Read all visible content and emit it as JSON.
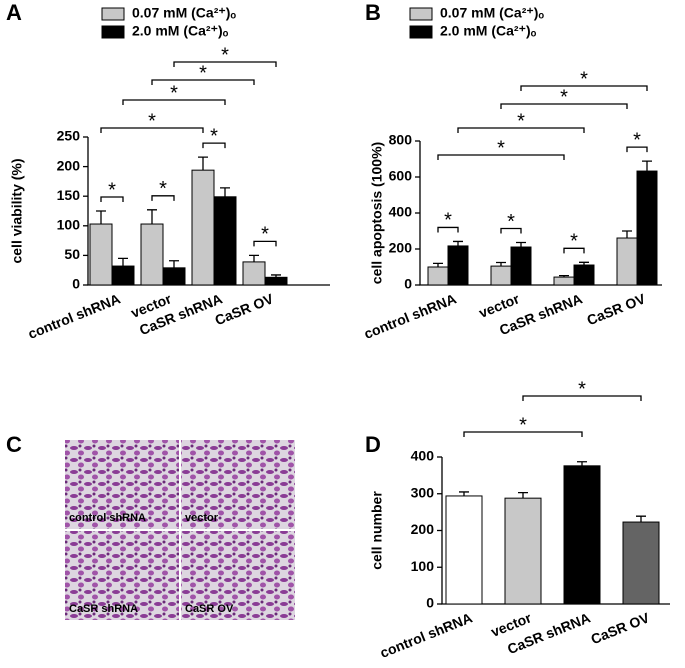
{
  "chart_data": [
    {
      "type": "bar",
      "panel": "A",
      "ylabel": "cell  viability (%)",
      "categories": [
        "control shRNA",
        "vector",
        "CaSR shRNA",
        "CaSR OV"
      ],
      "series": [
        {
          "name": "0.07 mM (Ca²⁺)ₒ",
          "color": "#c8c8c8",
          "values": [
            103,
            103,
            194,
            39
          ],
          "errors": [
            22,
            24,
            22,
            11
          ]
        },
        {
          "name": "2.0   mM (Ca²⁺)ₒ",
          "color": "#000000",
          "values": [
            32,
            29,
            149,
            13
          ],
          "errors": [
            13,
            12,
            15,
            4
          ]
        }
      ],
      "ylim": [
        0,
        250
      ],
      "yticks": [
        0,
        50,
        100,
        150,
        200,
        250
      ],
      "annotations": [
        "*",
        "*",
        "*",
        "*",
        "*",
        "*",
        "*",
        "*"
      ]
    },
    {
      "type": "bar",
      "panel": "B",
      "ylabel": "cell apoptosis (100%)",
      "categories": [
        "control shRNA",
        "vector",
        "CaSR shRNA",
        "CaSR OV"
      ],
      "series": [
        {
          "name": "0.07 mM (Ca²⁺)ₒ",
          "color": "#c8c8c8",
          "values": [
            100,
            105,
            44,
            261
          ],
          "errors": [
            20,
            20,
            8,
            39
          ]
        },
        {
          "name": "2.0   mM (Ca²⁺)ₒ",
          "color": "#000000",
          "values": [
            217,
            211,
            111,
            633
          ],
          "errors": [
            25,
            25,
            15,
            55
          ]
        }
      ],
      "ylim": [
        0,
        800
      ],
      "yticks": [
        0,
        200,
        400,
        600,
        800
      ],
      "annotations": [
        "*",
        "*",
        "*",
        "*",
        "*",
        "*",
        "*",
        "*"
      ]
    },
    {
      "type": "image",
      "panel": "C",
      "labels": [
        "control shRNA",
        "vector",
        "CaSR shRNA",
        "CaSR OV"
      ]
    },
    {
      "type": "bar",
      "panel": "D",
      "ylabel": "cell number",
      "categories": [
        "control shRNA",
        "vector",
        "CaSR shRNA",
        "CaSR OV"
      ],
      "series": [
        {
          "colors": [
            "#ffffff",
            "#c8c8c8",
            "#000000",
            "#646464"
          ],
          "values": [
            294,
            288,
            376,
            223
          ],
          "errors": [
            11,
            15,
            11,
            16
          ]
        }
      ],
      "ylim": [
        0,
        400
      ],
      "yticks": [
        0,
        100,
        200,
        300,
        400
      ],
      "annotations": [
        "*",
        "*"
      ]
    }
  ]
}
